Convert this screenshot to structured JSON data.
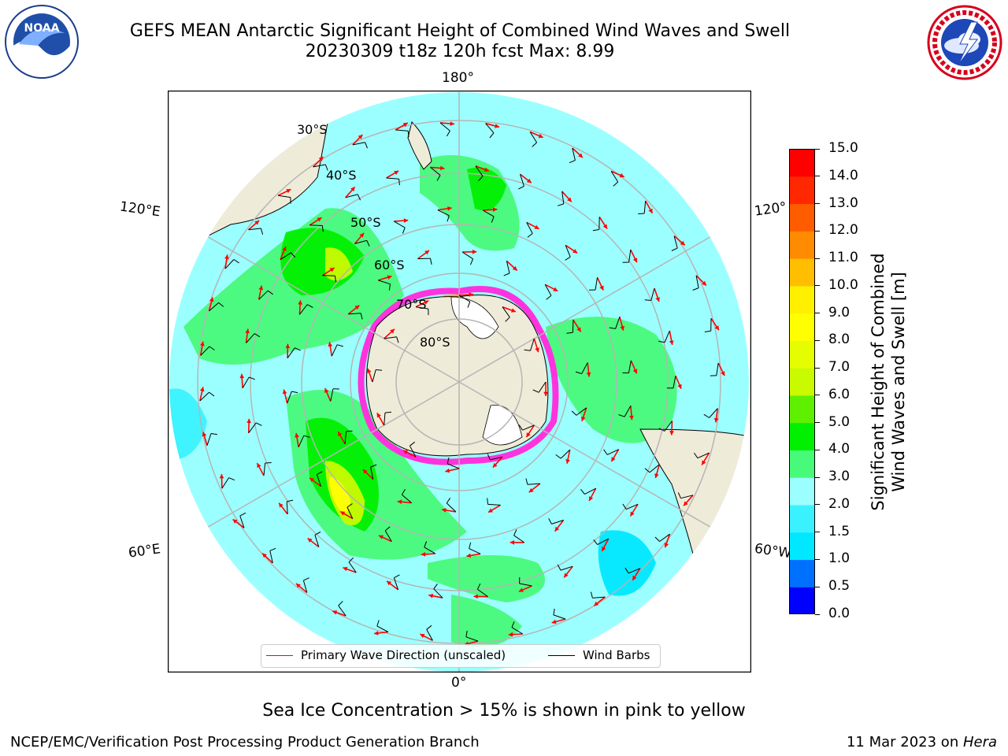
{
  "title_line1": "GEFS MEAN Antarctic Significant Height of Combined Wind Waves and Swell",
  "title_line2": "20230309 t18z 120h fcst   Max: 8.99",
  "logos": {
    "left": "NOAA",
    "right": "NATIONAL WEATHER SERVICE"
  },
  "map": {
    "lon_labels": {
      "top": "180°",
      "bottom": "0°",
      "upper_left": "120°E",
      "lower_left": "60°E",
      "upper_right": "120°",
      "lower_right": "60°W"
    },
    "lat_labels": [
      "30°S",
      "40°S",
      "50°S",
      "60°S",
      "70°S",
      "80°S"
    ],
    "colors": {
      "land": "#efebd9",
      "coast": "#000000",
      "grid": "#b5b5b5"
    }
  },
  "legend": {
    "wave_label": "Primary Wave Direction (unscaled)",
    "wave_color": "#ff0000",
    "barb_label": "Wind Barbs",
    "barb_color": "#000000"
  },
  "colorbar": {
    "label_line1": "Significant Height of Combined",
    "label_line2": "Wind Waves and Swell [m]",
    "ticks": [
      "0.0",
      "0.5",
      "1.0",
      "1.5",
      "2.0",
      "3.0",
      "4.0",
      "5.0",
      "6.0",
      "7.0",
      "8.0",
      "9.0",
      "10.0",
      "11.0",
      "12.0",
      "13.0",
      "14.0",
      "15.0"
    ],
    "colors": [
      "#0000ff",
      "#0070ff",
      "#00e8ff",
      "#3af2ff",
      "#9cffff",
      "#48fa7a",
      "#00f000",
      "#5ff000",
      "#c9fa00",
      "#e6fc00",
      "#ffff00",
      "#fff000",
      "#ffbe00",
      "#ff8c00",
      "#ff5c00",
      "#ff2800",
      "#ff0000"
    ]
  },
  "chart_data": {
    "type": "heatmap",
    "title": "GEFS MEAN Antarctic Significant Height of Combined Wind Waves and Swell",
    "subtitle": "20230309 t18z 120h fcst   Max: 8.99",
    "projection": "south polar stereographic",
    "field": "Significant Height of Combined Wind Waves and Swell [m]",
    "max_value": 8.99,
    "colorbar_levels": [
      0.0,
      0.5,
      1.0,
      1.5,
      2.0,
      3.0,
      4.0,
      5.0,
      6.0,
      7.0,
      8.0,
      9.0,
      10.0,
      11.0,
      12.0,
      13.0,
      14.0,
      15.0
    ],
    "overlays": [
      "Primary Wave Direction (unscaled)",
      "Wind Barbs"
    ],
    "note": "Sea Ice Concentration > 15% is shown in pink to yellow"
  },
  "footer": {
    "note": "Sea Ice Concentration > 15% is shown in pink to yellow",
    "left": "NCEP/EMC/Verification Post Processing Product Generation Branch",
    "right_date": "11 Mar 2023 on ",
    "right_host": "Hera"
  }
}
